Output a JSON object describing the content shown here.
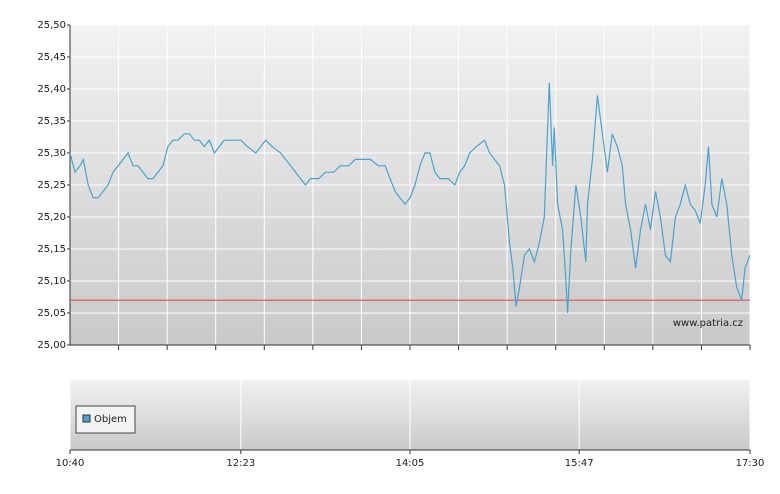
{
  "chart_data": {
    "type": "line",
    "watermark": "www.patria.cz",
    "x": [
      "10:40",
      "10:43",
      "10:46",
      "10:48",
      "10:51",
      "10:54",
      "10:57",
      "11:00",
      "11:03",
      "11:06",
      "11:09",
      "11:12",
      "11:15",
      "11:18",
      "11:21",
      "11:24",
      "11:27",
      "11:30",
      "11:33",
      "11:36",
      "11:39",
      "11:42",
      "11:45",
      "11:49",
      "11:52",
      "11:55",
      "11:58",
      "12:01",
      "12:04",
      "12:07",
      "12:10",
      "12:13",
      "12:18",
      "12:23",
      "12:27",
      "12:32",
      "12:35",
      "12:38",
      "12:42",
      "12:47",
      "12:50",
      "12:53",
      "12:56",
      "12:59",
      "13:02",
      "13:05",
      "13:10",
      "13:14",
      "13:19",
      "13:23",
      "13:28",
      "13:32",
      "13:36",
      "13:41",
      "13:46",
      "13:50",
      "13:53",
      "13:56",
      "13:59",
      "14:02",
      "14:05",
      "14:08",
      "14:11",
      "14:14",
      "14:17",
      "14:20",
      "14:23",
      "14:28",
      "14:32",
      "14:35",
      "14:38",
      "14:41",
      "14:45",
      "14:50",
      "14:53",
      "14:56",
      "14:59",
      "15:02",
      "15:05",
      "15:07",
      "15:09",
      "15:11",
      "15:14",
      "15:17",
      "15:20",
      "15:23",
      "15:26",
      "15:29",
      "15:31",
      "15:32",
      "15:34",
      "15:37",
      "15:39",
      "15:40",
      "15:42",
      "15:45",
      "15:48",
      "15:51",
      "15:52",
      "15:55",
      "15:58",
      "16:01",
      "16:04",
      "16:07",
      "16:10",
      "16:13",
      "16:15",
      "16:18",
      "16:21",
      "16:24",
      "16:27",
      "16:30",
      "16:33",
      "16:36",
      "16:39",
      "16:42",
      "16:45",
      "16:48",
      "16:51",
      "16:54",
      "16:57",
      "17:00",
      "17:03",
      "17:05",
      "17:07",
      "17:10",
      "17:13",
      "17:16",
      "17:19",
      "17:22",
      "17:25",
      "17:27",
      "17:30"
    ],
    "series": [
      {
        "color": "#4aa3cf",
        "values": [
          25.3,
          25.27,
          25.28,
          25.29,
          25.25,
          25.23,
          25.23,
          25.24,
          25.25,
          25.27,
          25.28,
          25.29,
          25.3,
          25.28,
          25.28,
          25.27,
          25.26,
          25.26,
          25.27,
          25.28,
          25.31,
          25.32,
          25.32,
          25.33,
          25.33,
          25.32,
          25.32,
          25.31,
          25.32,
          25.3,
          25.31,
          25.32,
          25.32,
          25.32,
          25.31,
          25.3,
          25.31,
          25.32,
          25.31,
          25.3,
          25.29,
          25.28,
          25.27,
          25.26,
          25.25,
          25.26,
          25.26,
          25.27,
          25.27,
          25.28,
          25.28,
          25.29,
          25.29,
          25.29,
          25.28,
          25.28,
          25.26,
          25.24,
          25.23,
          25.22,
          25.23,
          25.25,
          25.28,
          25.3,
          25.3,
          25.27,
          25.26,
          25.26,
          25.25,
          25.27,
          25.28,
          25.3,
          25.31,
          25.32,
          25.3,
          25.29,
          25.28,
          25.25,
          25.16,
          25.12,
          25.06,
          25.09,
          25.14,
          25.15,
          25.13,
          25.16,
          25.2,
          25.41,
          25.28,
          25.34,
          25.22,
          25.18,
          25.1,
          25.05,
          25.15,
          25.25,
          25.2,
          25.13,
          25.22,
          25.29,
          25.39,
          25.33,
          25.27,
          25.33,
          25.31,
          25.28,
          25.22,
          25.18,
          25.12,
          25.18,
          25.22,
          25.18,
          25.24,
          25.2,
          25.14,
          25.13,
          25.2,
          25.22,
          25.25,
          25.22,
          25.21,
          25.19,
          25.25,
          25.31,
          25.22,
          25.2,
          25.26,
          25.22,
          25.14,
          25.09,
          25.07,
          25.12,
          25.14
        ]
      }
    ],
    "reference_line": {
      "value": 25.07,
      "color": "#d9534f"
    },
    "xlim": [
      "10:40",
      "17:30"
    ],
    "xticks": [
      "10:40",
      "12:23",
      "14:05",
      "15:47",
      "17:30"
    ],
    "ylim": [
      25.0,
      25.5
    ],
    "yticks": [
      {
        "value": 25.0,
        "label": "25,00"
      },
      {
        "value": 25.05,
        "label": "25,05"
      },
      {
        "value": 25.1,
        "label": "25,10"
      },
      {
        "value": 25.15,
        "label": "25,15"
      },
      {
        "value": 25.2,
        "label": "25,20"
      },
      {
        "value": 25.25,
        "label": "25,25"
      },
      {
        "value": 25.3,
        "label": "25,30"
      },
      {
        "value": 25.35,
        "label": "25,35"
      },
      {
        "value": 25.4,
        "label": "25,40"
      },
      {
        "value": 25.45,
        "label": "25,45"
      },
      {
        "value": 25.5,
        "label": "25,50"
      }
    ],
    "grid": true,
    "volume_panel": {
      "legend": "Objem",
      "color": "#4aa3cf"
    }
  }
}
